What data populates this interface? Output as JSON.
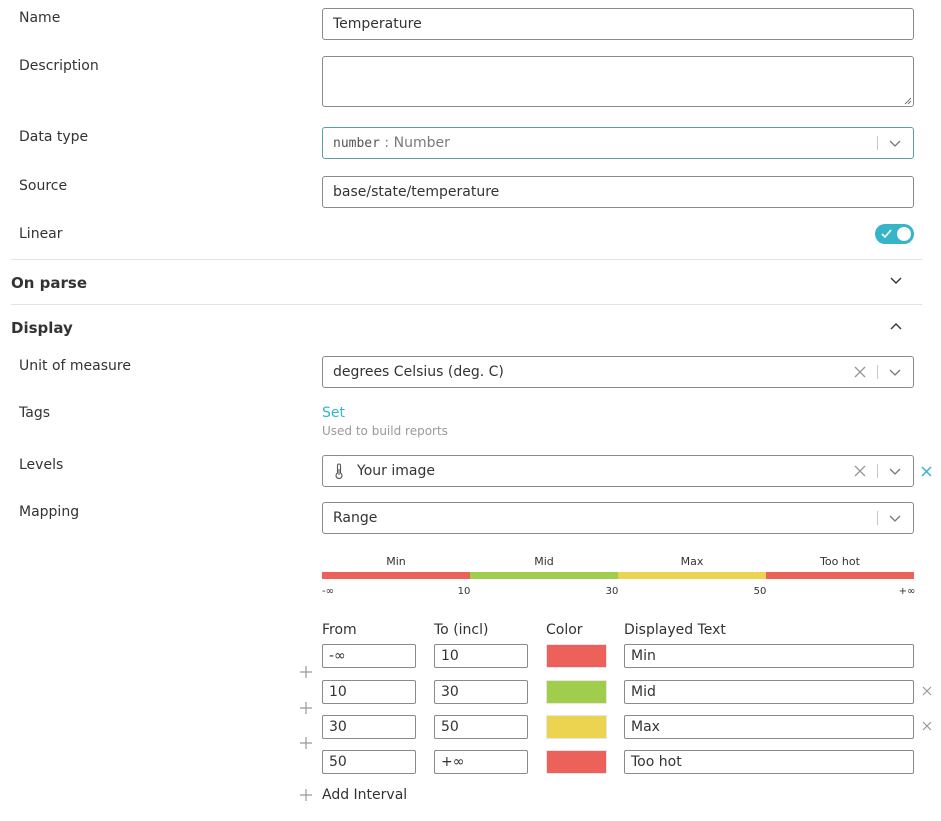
{
  "fields": {
    "name": {
      "label": "Name",
      "value": "Temperature"
    },
    "description": {
      "label": "Description",
      "value": ""
    },
    "data_type": {
      "label": "Data type",
      "code": "number",
      "separator": " : ",
      "text": "Number"
    },
    "source": {
      "label": "Source",
      "value": "base/state/temperature"
    },
    "linear": {
      "label": "Linear",
      "enabled": true
    }
  },
  "sections": {
    "on_parse": "On parse",
    "display": "Display"
  },
  "display": {
    "unit": {
      "label": "Unit of measure",
      "value": "degrees Celsius (deg. C)"
    },
    "tags": {
      "label": "Tags",
      "link": "Set",
      "hint": "Used to build reports"
    },
    "levels": {
      "label": "Levels",
      "value": "Your image",
      "icon": "thermometer-icon"
    },
    "mapping": {
      "label": "Mapping",
      "value": "Range"
    }
  },
  "range_bar": {
    "segments": [
      {
        "label": "Min",
        "color": "#ec625b"
      },
      {
        "label": "Mid",
        "color": "#a0cd4b"
      },
      {
        "label": "Max",
        "color": "#ecd350"
      },
      {
        "label": "Too hot",
        "color": "#ec625b"
      }
    ],
    "ticks": [
      "-∞",
      "10",
      "30",
      "50",
      "+∞"
    ]
  },
  "intervals": {
    "headers": {
      "from": "From",
      "to": "To (incl)",
      "color": "Color",
      "text": "Displayed Text"
    },
    "rows": [
      {
        "from": "-∞",
        "to": "10",
        "color": "#ec625b",
        "text": "Min"
      },
      {
        "from": "10",
        "to": "30",
        "color": "#a0cd4b",
        "text": "Mid"
      },
      {
        "from": "30",
        "to": "50",
        "color": "#ecd350",
        "text": "Max"
      },
      {
        "from": "50",
        "to": "+∞",
        "color": "#ec625b",
        "text": "Too hot"
      }
    ],
    "add_label": "Add Interval"
  },
  "colors": {
    "accent": "#36b4c8",
    "field_border": "#8a8a8a",
    "teal_border": "#5c9ea8"
  }
}
